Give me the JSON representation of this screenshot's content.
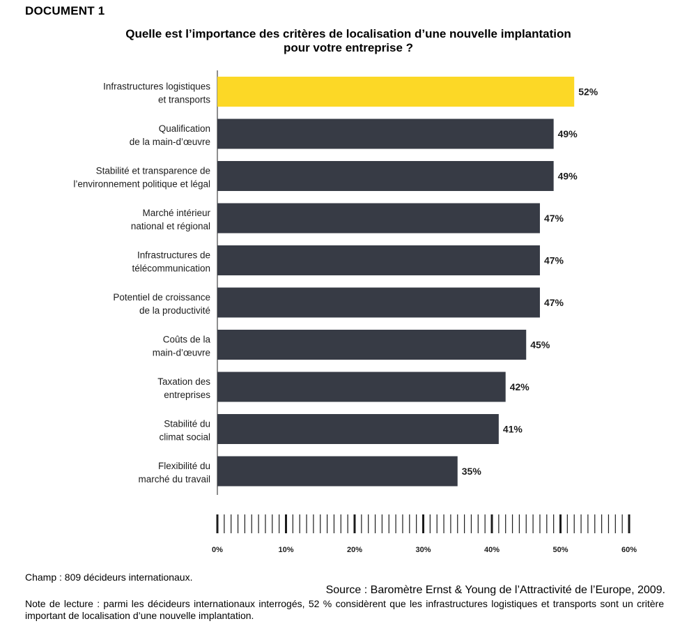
{
  "document_label": "DOCUMENT 1",
  "title_line1": "Quelle est l’importance des critères de localisation d’une nouvelle implantation",
  "title_line2": "pour votre entreprise ?",
  "chart_data": {
    "type": "bar",
    "orientation": "horizontal",
    "categories": [
      [
        "Infrastructures logistiques",
        "et transports"
      ],
      [
        "Qualification",
        "de la main-d’œuvre"
      ],
      [
        "Stabilité et transparence de",
        "l’environnement politique et légal"
      ],
      [
        "Marché intérieur",
        "national et régional"
      ],
      [
        "Infrastructures de",
        "télécommunication"
      ],
      [
        "Potentiel de croissance",
        "de la productivité"
      ],
      [
        "Coûts de la",
        "main-d’œuvre"
      ],
      [
        "Taxation des",
        "entreprises"
      ],
      [
        "Stabilité du",
        "climat social"
      ],
      [
        "Flexibilité du",
        "marché du travail"
      ]
    ],
    "values": [
      52,
      49,
      49,
      47,
      47,
      47,
      45,
      42,
      41,
      35
    ],
    "value_labels": [
      "52%",
      "49%",
      "49%",
      "47%",
      "47%",
      "47%",
      "45%",
      "42%",
      "41%",
      "35%"
    ],
    "xlim": [
      0,
      60
    ],
    "x_ticks": [
      "0%",
      "10%",
      "20%",
      "30%",
      "40%",
      "50%",
      "60%"
    ],
    "highlight_index": 0,
    "colors": {
      "highlight": "#fcd826",
      "bar": "#373b45",
      "axis": "#1c1c1c"
    },
    "grid": false,
    "legend": "none"
  },
  "champ": "Champ : 809 décideurs internationaux.",
  "source": "Source : Baromètre Ernst & Young de l’Attractivité de l’Europe, 2009.",
  "note": "Note de lecture : parmi les décideurs internationaux interrogés, 52 % considèrent que les infrastructures logistiques et transports sont un critère important de localisation d’une nouvelle implantation."
}
